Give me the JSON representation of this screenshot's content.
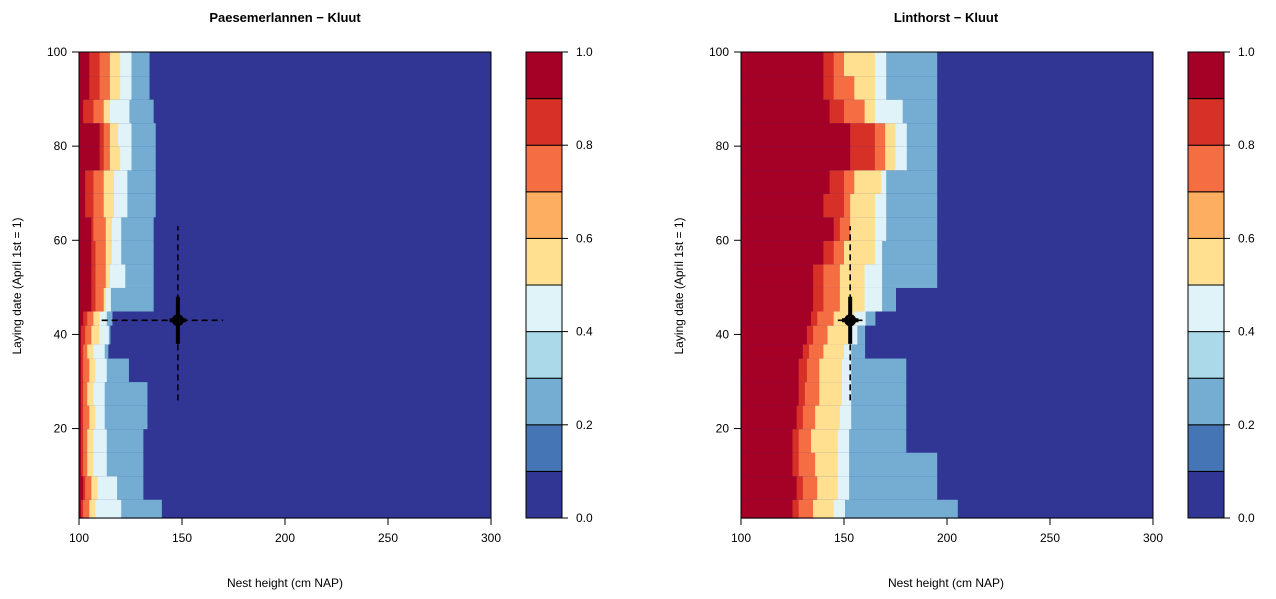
{
  "chart_data": [
    {
      "type": "heatmap",
      "title": "Paesemerlannen − Kluut",
      "xlabel": "Nest height (cm NAP)",
      "ylabel": "Laying date (April 1st = 1)",
      "xlim": [
        100,
        300
      ],
      "ylim": [
        1,
        100
      ],
      "x_ticks": [
        100,
        150,
        200,
        250,
        300
      ],
      "y_ticks": [
        20,
        40,
        60,
        80,
        100
      ],
      "colorbar": {
        "ticks": [
          "0.0",
          "0.2",
          "0.4",
          "0.6",
          "0.8",
          "1.0"
        ],
        "levels": [
          0,
          0.1,
          0.2,
          0.3,
          0.4,
          0.5,
          0.6,
          0.7,
          0.8,
          0.9,
          1.0
        ]
      },
      "colors": [
        "#313695",
        "#4575b4",
        "#74add1",
        "#abd9e9",
        "#e0f3f8",
        "#fee090",
        "#fdae61",
        "#f46d43",
        "#d73027",
        "#a50026"
      ],
      "bands": {
        "y": [
          1,
          5,
          10,
          15,
          20,
          25,
          30,
          35,
          38,
          42,
          45,
          50,
          55,
          60,
          65,
          70,
          75,
          80,
          85,
          90,
          95,
          100
        ],
        "boundaries": [
          [
            101,
            102,
            105,
            108,
            120,
            140
          ],
          [
            102,
            103,
            106,
            109,
            118,
            131
          ],
          [
            101,
            102,
            104,
            107,
            113,
            131
          ],
          [
            101,
            102,
            104,
            107,
            113,
            131
          ],
          [
            101,
            102,
            105,
            108,
            112,
            133
          ],
          [
            101,
            102,
            104,
            107,
            112,
            133
          ],
          [
            101,
            102,
            105,
            108,
            113,
            124
          ],
          [
            101,
            102,
            104,
            107,
            112,
            114
          ],
          [
            101,
            103,
            106,
            110,
            114,
            115
          ],
          [
            102,
            104,
            107,
            110,
            113,
            116
          ],
          [
            106,
            108,
            112,
            113,
            115,
            136
          ],
          [
            106,
            108,
            113,
            115,
            122,
            136
          ],
          [
            106,
            108,
            113,
            116,
            120,
            136
          ],
          [
            106,
            107,
            113,
            116,
            120,
            136
          ],
          [
            103,
            107,
            112,
            117,
            123,
            137
          ],
          [
            103,
            107,
            112,
            117,
            123,
            137
          ],
          [
            110,
            112,
            115,
            120,
            125,
            137
          ],
          [
            110,
            112,
            115,
            119,
            125,
            137
          ],
          [
            102,
            107,
            112,
            115,
            124,
            136
          ],
          [
            105,
            110,
            115,
            120,
            125,
            134
          ],
          [
            105,
            110,
            115,
            120,
            125,
            134
          ]
        ]
      },
      "point": {
        "x": 148,
        "y": 43,
        "xerr": [
          111,
          170
        ],
        "yerr": [
          26,
          63
        ]
      }
    },
    {
      "type": "heatmap",
      "title": "Linthorst − Kluut",
      "xlabel": "Nest height (cm NAP)",
      "ylabel": "Laying date (April 1st = 1)",
      "xlim": [
        100,
        300
      ],
      "ylim": [
        1,
        100
      ],
      "x_ticks": [
        100,
        150,
        200,
        250,
        300
      ],
      "y_ticks": [
        20,
        40,
        60,
        80,
        100
      ],
      "colorbar": {
        "ticks": [
          "0.0",
          "0.2",
          "0.4",
          "0.6",
          "0.8",
          "1.0"
        ],
        "levels": [
          0,
          0.1,
          0.2,
          0.3,
          0.4,
          0.5,
          0.6,
          0.7,
          0.8,
          0.9,
          1.0
        ]
      },
      "colors": [
        "#313695",
        "#4575b4",
        "#74add1",
        "#abd9e9",
        "#e0f3f8",
        "#fee090",
        "#fdae61",
        "#f46d43",
        "#d73027",
        "#a50026"
      ],
      "bands": {
        "y": [
          1,
          5,
          10,
          15,
          20,
          25,
          30,
          35,
          38,
          42,
          45,
          50,
          55,
          60,
          65,
          70,
          75,
          80,
          85,
          90,
          95,
          100
        ],
        "boundaries": [
          [
            125,
            128,
            135,
            145,
            150,
            205
          ],
          [
            127,
            130,
            137,
            147,
            152,
            195
          ],
          [
            125,
            128,
            136,
            147,
            152,
            195
          ],
          [
            125,
            128,
            134,
            147,
            152,
            180
          ],
          [
            127,
            130,
            136,
            148,
            153,
            180
          ],
          [
            128,
            131,
            138,
            149,
            153,
            180
          ],
          [
            128,
            132,
            138,
            149,
            153,
            180
          ],
          [
            130,
            133,
            140,
            150,
            153,
            160
          ],
          [
            132,
            135,
            142,
            152,
            156,
            160
          ],
          [
            134,
            137,
            145,
            155,
            160,
            165
          ],
          [
            135,
            140,
            148,
            160,
            168,
            175
          ],
          [
            135,
            140,
            148,
            160,
            168,
            195
          ],
          [
            140,
            145,
            150,
            165,
            168,
            195
          ],
          [
            145,
            148,
            153,
            165,
            170,
            195
          ],
          [
            140,
            150,
            153,
            165,
            170,
            195
          ],
          [
            143,
            150,
            155,
            168,
            170,
            195
          ],
          [
            153,
            165,
            170,
            175,
            180,
            195
          ],
          [
            153,
            165,
            170,
            175,
            180,
            195
          ],
          [
            143,
            150,
            160,
            165,
            178,
            195
          ],
          [
            140,
            145,
            155,
            165,
            170,
            195
          ],
          [
            140,
            145,
            150,
            165,
            170,
            195
          ]
        ]
      },
      "point": {
        "x": 153,
        "y": 43,
        "xerr": [
          147,
          159
        ],
        "yerr": [
          26,
          63
        ]
      }
    }
  ]
}
